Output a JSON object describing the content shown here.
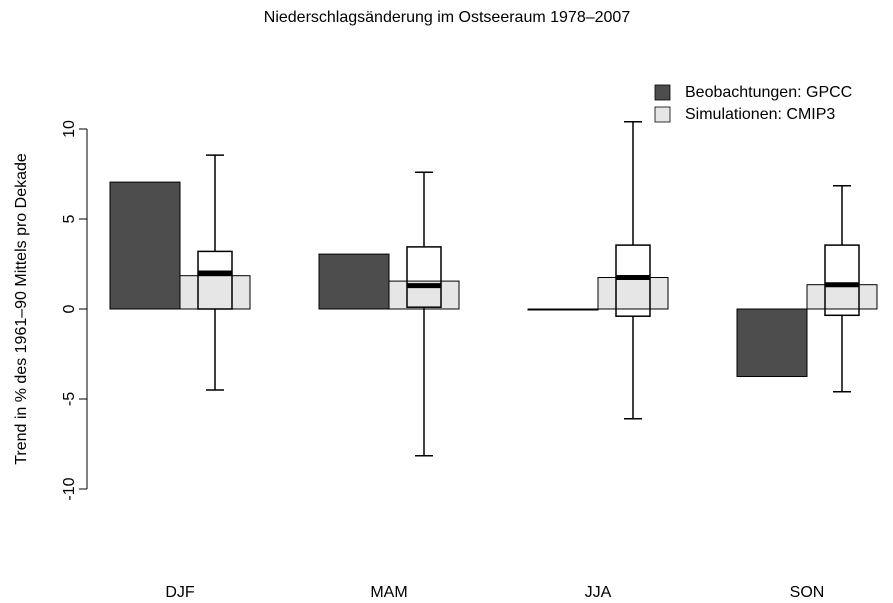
{
  "chart_data": {
    "type": "bar",
    "title": "Niederschlagsänderung im Ostseeraum 1978–2007",
    "y_label": "Trend in % des 1961–90 Mittels pro Dekade",
    "categories": [
      "DJF",
      "MAM",
      "JJA",
      "SON"
    ],
    "series": [
      {
        "name": "Beobachtungen: GPCC",
        "color": "#4d4d4d",
        "values": [
          7.05,
          3.05,
          -0.05,
          -3.75
        ]
      },
      {
        "name": "Simulationen: CMIP3",
        "color": "#e6e6e6",
        "values": [
          1.85,
          1.55,
          1.75,
          1.35
        ]
      }
    ],
    "boxes": [
      {
        "whislo": -4.5,
        "q1": 0.0,
        "med": 2.0,
        "q3": 3.2,
        "whishi": 8.55
      },
      {
        "whislo": -8.15,
        "q1": 0.1,
        "med": 1.3,
        "q3": 3.45,
        "whishi": 7.6
      },
      {
        "whislo": -6.1,
        "q1": -0.4,
        "med": 1.75,
        "q3": 3.55,
        "whishi": 10.4
      },
      {
        "whislo": -4.6,
        "q1": -0.35,
        "med": 1.35,
        "q3": 3.55,
        "whishi": 6.85
      }
    ],
    "ylim": [
      -12,
      11
    ],
    "yticks": [
      -10,
      -5,
      0,
      5,
      10
    ],
    "legend": "top-right",
    "grid": false
  }
}
